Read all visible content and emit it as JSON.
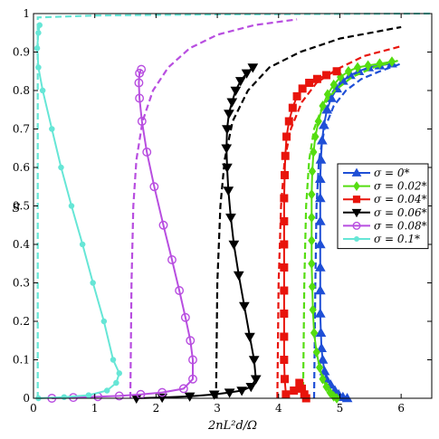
{
  "chart_data": {
    "type": "line",
    "xlabel": "2nL²d/Ω",
    "ylabel": "S",
    "xlim": [
      0,
      6.5
    ],
    "ylim": [
      0,
      1
    ],
    "xticks": [
      "0",
      "1",
      "2",
      "3",
      "4",
      "5",
      "6"
    ],
    "yticks": [
      "0",
      "0.1",
      "0.2",
      "0.3",
      "0.4",
      "0.5",
      "0.6",
      "0.7",
      "0.8",
      "0.9",
      "1"
    ],
    "legend_position": "right",
    "series": [
      {
        "name": "σ = 0*",
        "color": "#1f4fd6",
        "marker": "triangle-up",
        "points": [
          [
            5.12,
            0.0
          ],
          [
            5.05,
            0.003
          ],
          [
            4.98,
            0.01
          ],
          [
            4.92,
            0.02
          ],
          [
            4.85,
            0.035
          ],
          [
            4.78,
            0.05
          ],
          [
            4.75,
            0.07
          ],
          [
            4.72,
            0.1
          ],
          [
            4.7,
            0.13
          ],
          [
            4.69,
            0.17
          ],
          [
            4.68,
            0.22
          ],
          [
            4.68,
            0.28
          ],
          [
            4.68,
            0.34
          ],
          [
            4.68,
            0.4
          ],
          [
            4.68,
            0.46
          ],
          [
            4.68,
            0.52
          ],
          [
            4.68,
            0.57
          ],
          [
            4.69,
            0.62
          ],
          [
            4.71,
            0.67
          ],
          [
            4.74,
            0.71
          ],
          [
            4.79,
            0.75
          ],
          [
            4.86,
            0.78
          ],
          [
            4.95,
            0.805
          ],
          [
            5.05,
            0.825
          ],
          [
            5.17,
            0.84
          ],
          [
            5.31,
            0.85
          ],
          [
            5.47,
            0.86
          ],
          [
            5.65,
            0.865
          ],
          [
            5.85,
            0.87
          ]
        ],
        "theory": [
          [
            4.58,
            0.0
          ],
          [
            4.6,
            0.3
          ],
          [
            4.62,
            0.5
          ],
          [
            4.66,
            0.62
          ],
          [
            4.75,
            0.7
          ],
          [
            4.9,
            0.76
          ],
          [
            5.1,
            0.8
          ],
          [
            5.35,
            0.83
          ],
          [
            5.65,
            0.85
          ],
          [
            6.0,
            0.87
          ]
        ]
      },
      {
        "name": "σ = 0.02*",
        "color": "#55dd11",
        "marker": "diamond",
        "points": [
          [
            4.95,
            0.0
          ],
          [
            4.9,
            0.005
          ],
          [
            4.84,
            0.015
          ],
          [
            4.78,
            0.03
          ],
          [
            4.72,
            0.05
          ],
          [
            4.67,
            0.08
          ],
          [
            4.62,
            0.12
          ],
          [
            4.58,
            0.17
          ],
          [
            4.56,
            0.23
          ],
          [
            4.55,
            0.29
          ],
          [
            4.54,
            0.35
          ],
          [
            4.54,
            0.41
          ],
          [
            4.54,
            0.47
          ],
          [
            4.54,
            0.53
          ],
          [
            4.55,
            0.59
          ],
          [
            4.57,
            0.64
          ],
          [
            4.6,
            0.68
          ],
          [
            4.65,
            0.72
          ],
          [
            4.72,
            0.76
          ],
          [
            4.8,
            0.79
          ],
          [
            4.9,
            0.815
          ],
          [
            5.01,
            0.835
          ],
          [
            5.14,
            0.85
          ],
          [
            5.29,
            0.86
          ],
          [
            5.46,
            0.865
          ],
          [
            5.65,
            0.87
          ],
          [
            5.85,
            0.875
          ]
        ],
        "theory": [
          [
            4.4,
            0.0
          ],
          [
            4.42,
            0.3
          ],
          [
            4.45,
            0.5
          ],
          [
            4.5,
            0.62
          ],
          [
            4.58,
            0.7
          ],
          [
            4.72,
            0.76
          ],
          [
            4.92,
            0.8
          ],
          [
            5.2,
            0.835
          ],
          [
            5.55,
            0.86
          ],
          [
            6.0,
            0.88
          ]
        ]
      },
      {
        "name": "σ = 0.04*",
        "color": "#e8140c",
        "marker": "square",
        "points": [
          [
            4.45,
            0.0
          ],
          [
            4.42,
            0.01
          ],
          [
            4.38,
            0.025
          ],
          [
            4.34,
            0.04
          ],
          [
            4.25,
            0.02
          ],
          [
            4.12,
            0.01
          ],
          [
            4.1,
            0.05
          ],
          [
            4.09,
            0.1
          ],
          [
            4.09,
            0.16
          ],
          [
            4.09,
            0.22
          ],
          [
            4.09,
            0.28
          ],
          [
            4.09,
            0.34
          ],
          [
            4.09,
            0.4
          ],
          [
            4.09,
            0.46
          ],
          [
            4.09,
            0.52
          ],
          [
            4.1,
            0.58
          ],
          [
            4.11,
            0.63
          ],
          [
            4.13,
            0.68
          ],
          [
            4.17,
            0.72
          ],
          [
            4.23,
            0.755
          ],
          [
            4.3,
            0.785
          ],
          [
            4.39,
            0.805
          ],
          [
            4.5,
            0.82
          ],
          [
            4.63,
            0.83
          ],
          [
            4.78,
            0.84
          ],
          [
            4.95,
            0.85
          ]
        ],
        "theory": [
          [
            3.98,
            0.0
          ],
          [
            4.0,
            0.3
          ],
          [
            4.04,
            0.5
          ],
          [
            4.1,
            0.62
          ],
          [
            4.2,
            0.7
          ],
          [
            4.38,
            0.77
          ],
          [
            4.62,
            0.82
          ],
          [
            4.95,
            0.855
          ],
          [
            5.4,
            0.89
          ],
          [
            6.0,
            0.915
          ]
        ]
      },
      {
        "name": "σ = 0.06*",
        "color": "#000000",
        "marker": "triangle-down",
        "points": [
          [
            1.68,
            0.0
          ],
          [
            2.1,
            0.002
          ],
          [
            2.55,
            0.005
          ],
          [
            2.95,
            0.01
          ],
          [
            3.2,
            0.015
          ],
          [
            3.4,
            0.02
          ],
          [
            3.55,
            0.03
          ],
          [
            3.63,
            0.05
          ],
          [
            3.6,
            0.1
          ],
          [
            3.53,
            0.16
          ],
          [
            3.44,
            0.24
          ],
          [
            3.35,
            0.32
          ],
          [
            3.27,
            0.4
          ],
          [
            3.22,
            0.47
          ],
          [
            3.18,
            0.54
          ],
          [
            3.16,
            0.6
          ],
          [
            3.15,
            0.65
          ],
          [
            3.16,
            0.7
          ],
          [
            3.19,
            0.74
          ],
          [
            3.24,
            0.77
          ],
          [
            3.3,
            0.8
          ],
          [
            3.38,
            0.825
          ],
          [
            3.48,
            0.845
          ],
          [
            3.58,
            0.86
          ]
        ],
        "theory": [
          [
            2.98,
            0.0
          ],
          [
            3.0,
            0.3
          ],
          [
            3.05,
            0.5
          ],
          [
            3.12,
            0.62
          ],
          [
            3.25,
            0.72
          ],
          [
            3.5,
            0.8
          ],
          [
            3.85,
            0.86
          ],
          [
            4.35,
            0.9
          ],
          [
            5.0,
            0.935
          ],
          [
            6.0,
            0.965
          ]
        ]
      },
      {
        "name": "σ = 0.08*",
        "color": "#b84ee0",
        "marker": "circle",
        "points": [
          [
            0.3,
            0.0
          ],
          [
            0.65,
            0.002
          ],
          [
            1.05,
            0.004
          ],
          [
            1.4,
            0.006
          ],
          [
            1.75,
            0.01
          ],
          [
            2.1,
            0.015
          ],
          [
            2.45,
            0.025
          ],
          [
            2.6,
            0.05
          ],
          [
            2.6,
            0.1
          ],
          [
            2.56,
            0.15
          ],
          [
            2.48,
            0.21
          ],
          [
            2.38,
            0.28
          ],
          [
            2.26,
            0.36
          ],
          [
            2.12,
            0.45
          ],
          [
            1.97,
            0.55
          ],
          [
            1.85,
            0.64
          ],
          [
            1.77,
            0.72
          ],
          [
            1.73,
            0.78
          ],
          [
            1.72,
            0.82
          ],
          [
            1.73,
            0.845
          ],
          [
            1.76,
            0.855
          ]
        ],
        "theory": [
          [
            1.58,
            0.0
          ],
          [
            1.6,
            0.3
          ],
          [
            1.63,
            0.5
          ],
          [
            1.68,
            0.62
          ],
          [
            1.78,
            0.72
          ],
          [
            1.95,
            0.8
          ],
          [
            2.2,
            0.86
          ],
          [
            2.55,
            0.91
          ],
          [
            3.0,
            0.945
          ],
          [
            3.6,
            0.97
          ],
          [
            4.3,
            0.985
          ]
        ]
      },
      {
        "name": "σ = 0.1*",
        "color": "#66e6d6",
        "marker": "circle-dot",
        "points": [
          [
            0.08,
            0.0
          ],
          [
            0.5,
            0.003
          ],
          [
            0.9,
            0.008
          ],
          [
            1.2,
            0.02
          ],
          [
            1.35,
            0.04
          ],
          [
            1.4,
            0.065
          ],
          [
            1.3,
            0.1
          ],
          [
            1.15,
            0.2
          ],
          [
            0.97,
            0.3
          ],
          [
            0.8,
            0.4
          ],
          [
            0.62,
            0.5
          ],
          [
            0.45,
            0.6
          ],
          [
            0.3,
            0.7
          ],
          [
            0.15,
            0.8
          ],
          [
            0.08,
            0.86
          ],
          [
            0.06,
            0.91
          ],
          [
            0.08,
            0.95
          ],
          [
            0.1,
            0.97
          ]
        ],
        "theory": [
          [
            0.07,
            0.0
          ],
          [
            0.07,
            0.5
          ],
          [
            0.07,
            0.99
          ],
          [
            1.0,
            0.995
          ],
          [
            3.0,
            0.998
          ],
          [
            6.5,
            1.0
          ]
        ]
      }
    ]
  }
}
